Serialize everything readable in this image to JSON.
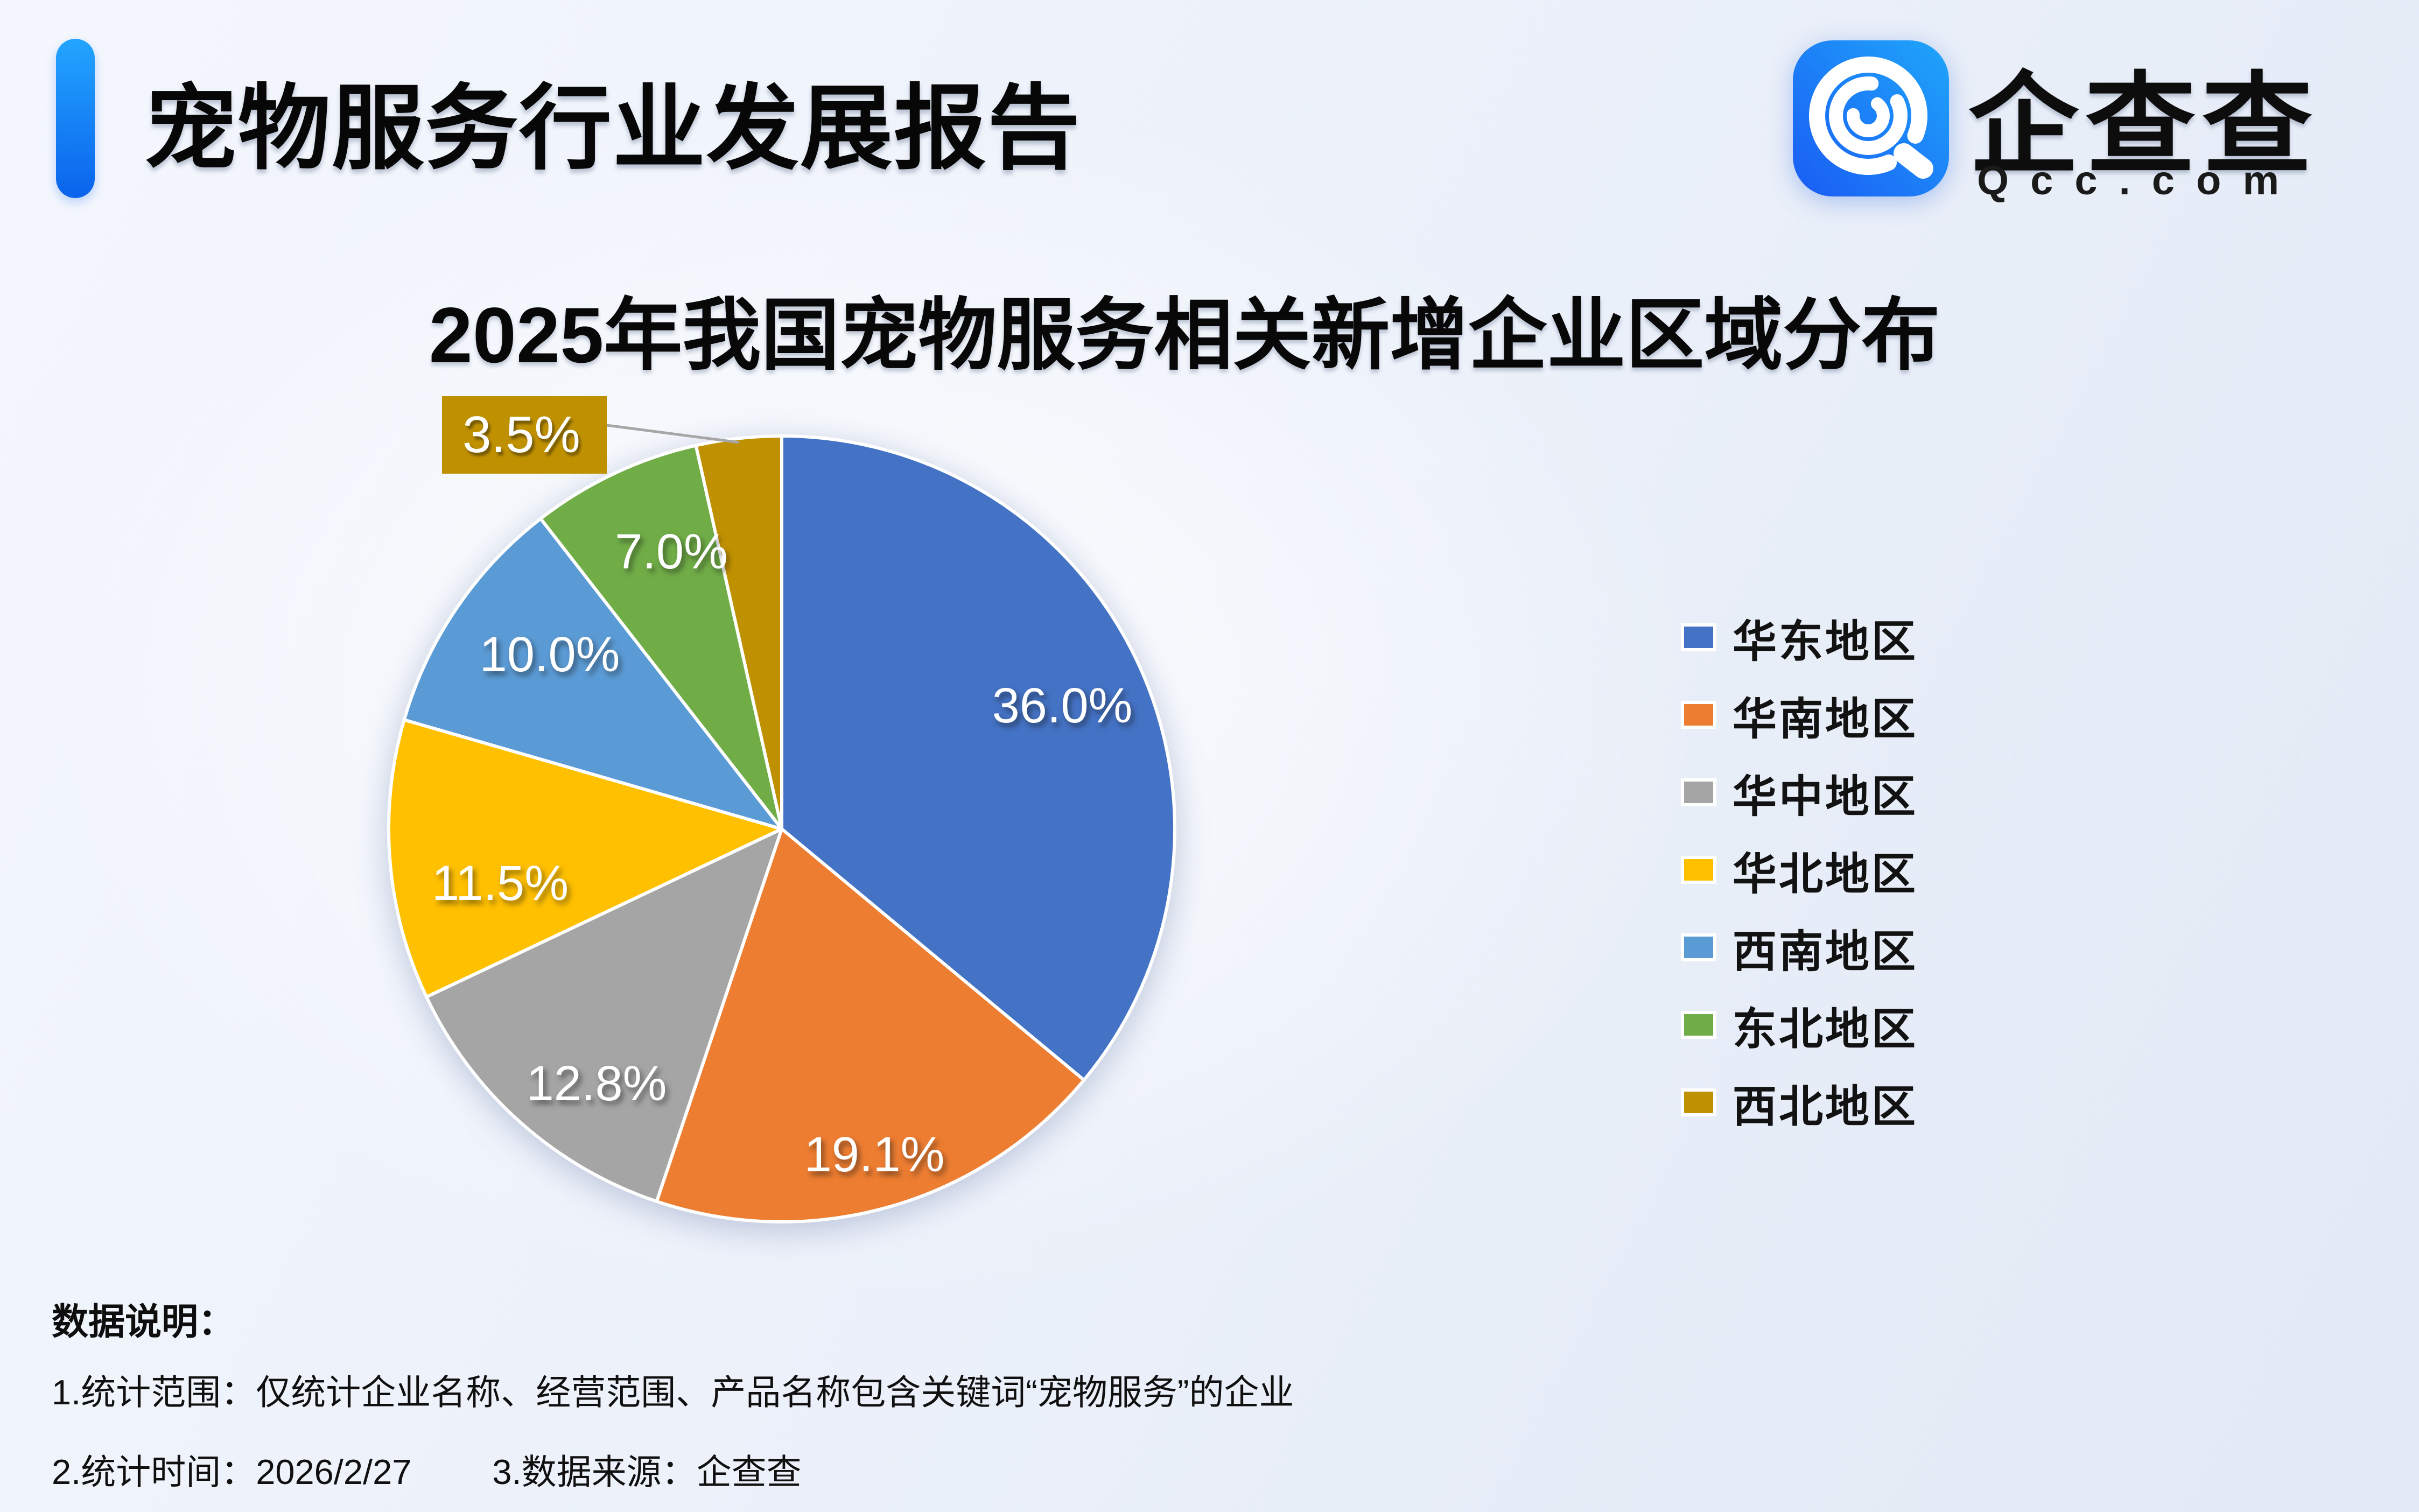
{
  "header": {
    "report_title": "宠物服务行业发展报告",
    "logo": {
      "brand_name": "企查查",
      "brand_domain": "Qcc.com",
      "icon": "qcc-swirl-icon",
      "icon_gradient": [
        "#1a5cf3",
        "#1fa6fb"
      ]
    },
    "accent_color": "#0a63ec"
  },
  "chart_data": {
    "type": "pie",
    "title": "2025年我国宠物服务相关新增企业区域分布",
    "categories": [
      "华东地区",
      "华南地区",
      "华中地区",
      "华北地区",
      "西南地区",
      "东北地区",
      "西北地区"
    ],
    "values": [
      36.0,
      19.1,
      12.8,
      11.5,
      10.0,
      7.0,
      3.5
    ],
    "labels": [
      "36.0%",
      "19.1%",
      "12.8%",
      "11.5%",
      "10.0%",
      "7.0%",
      "3.5%"
    ],
    "colors": [
      "#4472C4",
      "#ED7D31",
      "#A5A5A5",
      "#FFC000",
      "#5B9BD5",
      "#70AD47",
      "#BF9000"
    ],
    "unit": "%",
    "start_angle_deg": 0,
    "direction": "clockwise",
    "legend_position": "right",
    "slice_border_color": "#FFFFFF",
    "label_text_color": "#FFFFFF",
    "leader_line_color": "#A6A6A6"
  },
  "notes": {
    "heading": "数据说明：",
    "line1": "1.统计范围：仅统计企业名称、经营范围、产品名称包含关键词“宠物服务”的企业",
    "line2_time": "2.统计时间：2026/2/27",
    "line2_source": "3.数据来源：企查查"
  }
}
